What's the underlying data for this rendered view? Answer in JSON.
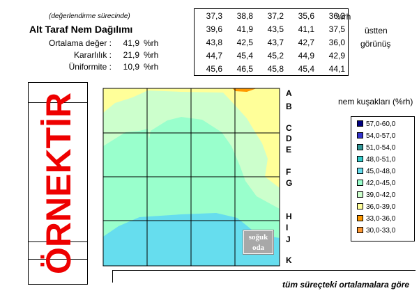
{
  "header": {
    "subtitle": "(değerlendirme sürecinde)",
    "title": "Alt Taraf Nem Dağılımı",
    "stats": [
      {
        "label": "Ortalama değer :",
        "value": "41,9",
        "unit": "%rh"
      },
      {
        "label": "Kararlılık :",
        "value": "21,9",
        "unit": "%rh"
      },
      {
        "label": "Üniformite :",
        "value": "10,9",
        "unit": "%rh"
      }
    ],
    "table_unit": "%rh",
    "side_note_1": "üstten",
    "side_note_2": "görünüş"
  },
  "watermark": "ÖRNEKTİR",
  "cold_room": {
    "line1": "soğuk",
    "line2": "oda"
  },
  "footer": "tüm süreçteki ortalamalara göre",
  "chart_data": {
    "type": "heatmap",
    "table_values": [
      [
        "37,3",
        "38,8",
        "37,2",
        "35,6",
        "36,3"
      ],
      [
        "39,6",
        "41,9",
        "43,5",
        "41,1",
        "37,5"
      ],
      [
        "43,8",
        "42,5",
        "43,7",
        "42,7",
        "36,0"
      ],
      [
        "44,7",
        "45,4",
        "45,2",
        "44,9",
        "42,9"
      ],
      [
        "45,6",
        "46,5",
        "45,8",
        "45,4",
        "44,1"
      ]
    ],
    "row_labels": [
      "A",
      "B",
      "C",
      "D",
      "E",
      "F",
      "G",
      "H",
      "I",
      "J",
      "K"
    ],
    "legend_title": "nem kuşakları (%rh)",
    "legend": [
      {
        "label": "57,0-60,0",
        "color": "#000080"
      },
      {
        "label": "54,0-57,0",
        "color": "#3333cc"
      },
      {
        "label": "51,0-54,0",
        "color": "#339999"
      },
      {
        "label": "48,0-51,0",
        "color": "#33cccc"
      },
      {
        "label": "45,0-48,0",
        "color": "#66ddee"
      },
      {
        "label": "42,0-45,0",
        "color": "#99ffcc"
      },
      {
        "label": "39,0-42,0",
        "color": "#ccffcc"
      },
      {
        "label": "36,0-39,0",
        "color": "#ffff99"
      },
      {
        "label": "33,0-36,0",
        "color": "#ff9900"
      },
      {
        "label": "30,0-33,0",
        "color": "#ff9933"
      }
    ]
  }
}
